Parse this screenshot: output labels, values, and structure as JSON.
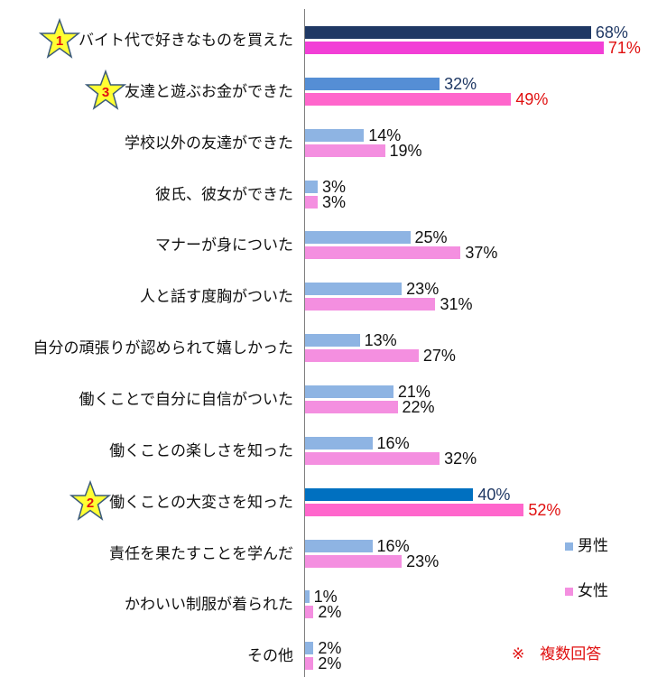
{
  "chart_data": {
    "type": "bar",
    "orientation": "horizontal",
    "categories": [
      "バイト代で好きなものを買えた",
      "友達と遊ぶお金ができた",
      "学校以外の友達ができた",
      "彼氏、彼女ができた",
      "マナーが身についた",
      "人と話す度胸がついた",
      "自分の頑張りが認められて嬉しかった",
      "働くことで自分に自信がついた",
      "働くことの楽しさを知った",
      "働くことの大変さを知った",
      "責任を果たすことを学んだ",
      "かわいい制服が着られた",
      "その他"
    ],
    "series": [
      {
        "name": "男性",
        "values": [
          68,
          32,
          14,
          3,
          25,
          23,
          13,
          21,
          16,
          40,
          16,
          1,
          2
        ],
        "color": "#8EB4E3"
      },
      {
        "name": "女性",
        "values": [
          71,
          49,
          19,
          3,
          37,
          31,
          27,
          22,
          32,
          52,
          23,
          2,
          2
        ],
        "color": "#F48FE0"
      }
    ],
    "value_suffix": "%",
    "highlights": [
      {
        "index": 0,
        "rank": "1",
        "male_color": "#1F3864",
        "female_color": "#F23FD6"
      },
      {
        "index": 9,
        "rank": "2",
        "male_color": "#0070C0",
        "female_color": "#FF66CC"
      },
      {
        "index": 1,
        "rank": "3",
        "male_color": "#558ED5",
        "female_color": "#FF66CC"
      }
    ],
    "highlight_label_colors": {
      "male": "#1F3864",
      "female": "#E01010"
    },
    "xlim": [
      0,
      75
    ],
    "legend": "right",
    "note": "※　複数回答"
  }
}
